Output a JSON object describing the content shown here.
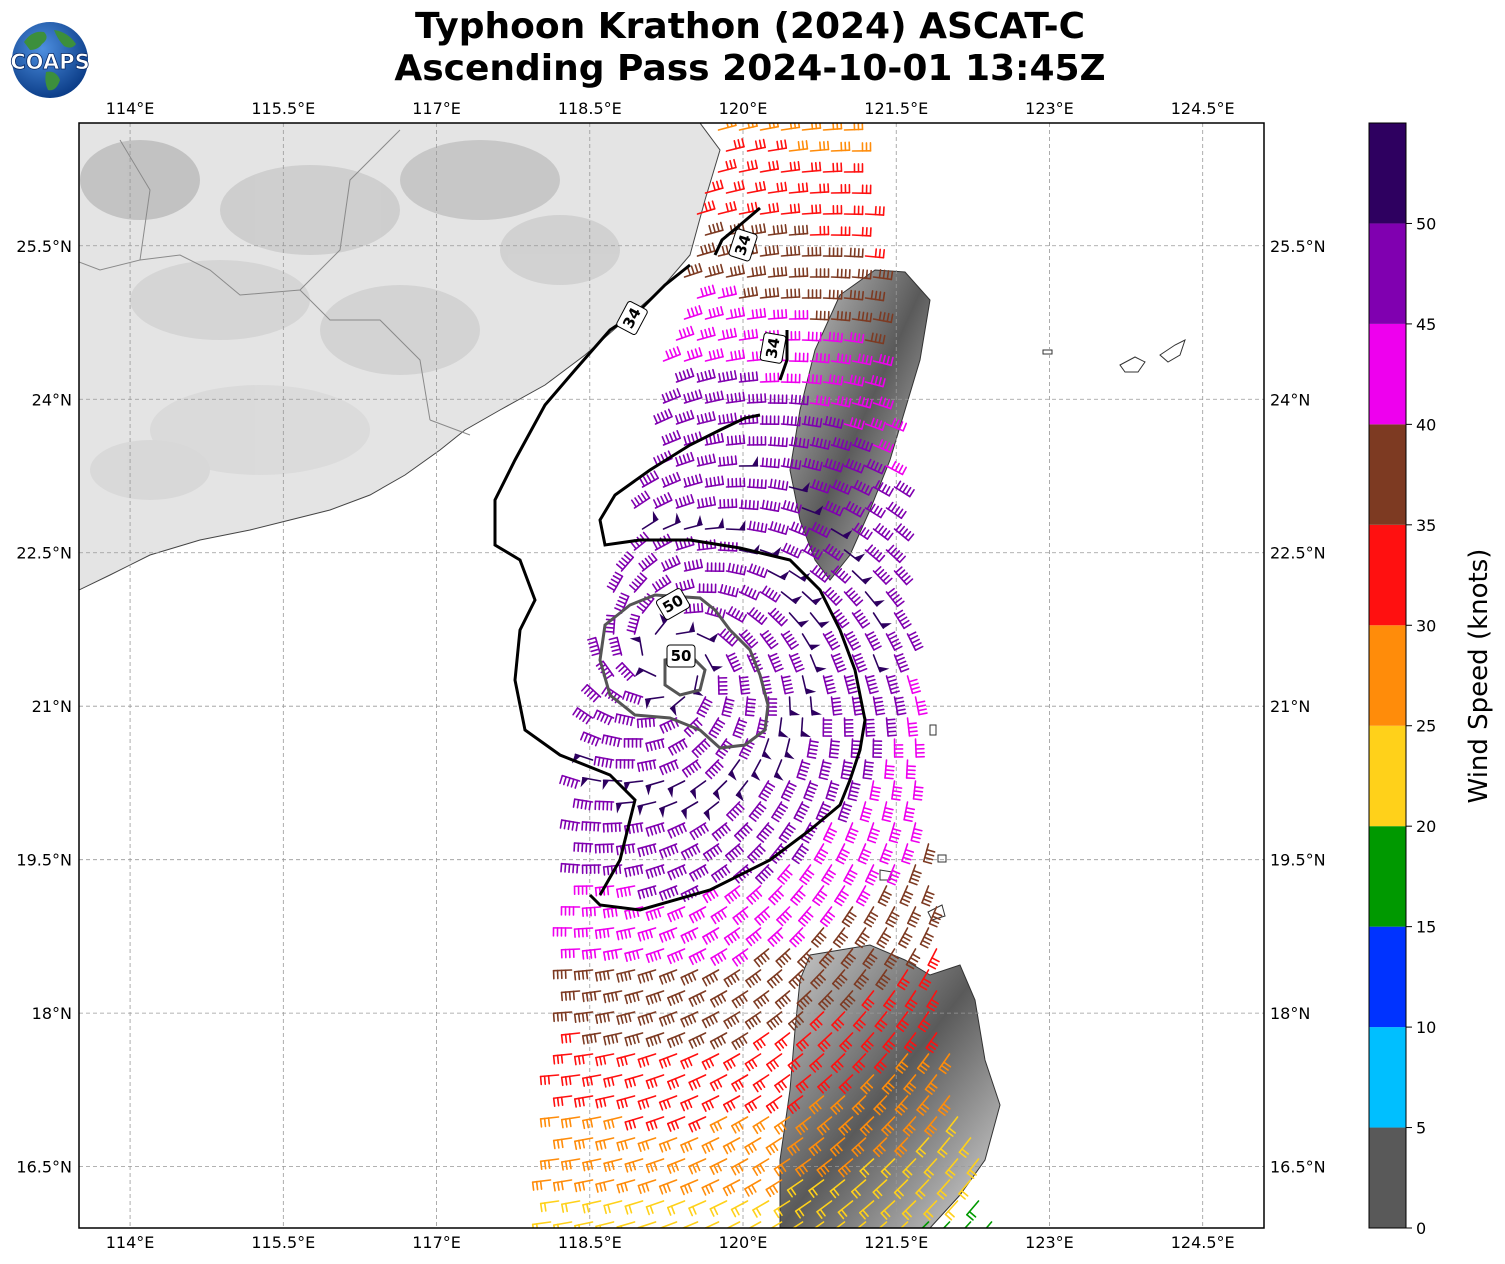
{
  "title": {
    "line1": "Typhoon Krathon (2024) ASCAT-C",
    "line2": "Ascending Pass 2024-10-01 13:45Z"
  },
  "logo": {
    "text": "COAPS",
    "icon": "globe-icon",
    "ocean_color": "#1a5fb0",
    "land_color": "#3c8f3c"
  },
  "map": {
    "lon_labels": [
      "114°E",
      "115.5°E",
      "117°E",
      "118.5°E",
      "120°E",
      "121.5°E",
      "123°E",
      "124.5°E"
    ],
    "lat_labels": [
      "25.5°N",
      "24°N",
      "22.5°N",
      "21°N",
      "19.5°N",
      "18°N",
      "16.5°N"
    ],
    "lon_values": [
      114,
      115.5,
      117,
      118.5,
      120,
      121.5,
      123,
      124.5
    ],
    "lat_values": [
      25.5,
      24,
      22.5,
      21,
      19.5,
      18,
      16.5
    ],
    "lon_range": [
      113.5,
      125.1
    ],
    "lat_range": [
      15.9,
      26.7
    ],
    "storm_center": {
      "lon": 119.3,
      "lat": 21.45
    },
    "contours": [
      {
        "label": "34",
        "color": "#000000"
      },
      {
        "label": "34",
        "color": "#000000"
      },
      {
        "label": "34",
        "color": "#000000"
      },
      {
        "label": "50",
        "color": "#555555"
      },
      {
        "label": "50",
        "color": "#555555"
      }
    ]
  },
  "colorbar": {
    "label": "Wind Speed (knots)",
    "tick_labels": [
      "0",
      "5",
      "10",
      "15",
      "20",
      "25",
      "30",
      "35",
      "40",
      "45",
      "50"
    ],
    "bins": [
      {
        "min": 0,
        "max": 5,
        "color": "#595959"
      },
      {
        "min": 5,
        "max": 10,
        "color": "#00bfff"
      },
      {
        "min": 10,
        "max": 15,
        "color": "#0033ff"
      },
      {
        "min": 15,
        "max": 20,
        "color": "#009900"
      },
      {
        "min": 20,
        "max": 25,
        "color": "#ffd11a"
      },
      {
        "min": 25,
        "max": 30,
        "color": "#ff8c0a"
      },
      {
        "min": 30,
        "max": 35,
        "color": "#ff1010"
      },
      {
        "min": 35,
        "max": 40,
        "color": "#7d3a22"
      },
      {
        "min": 40,
        "max": 45,
        "color": "#ee00ee"
      },
      {
        "min": 45,
        "max": 50,
        "color": "#8000b0"
      },
      {
        "min": 50,
        "max": 55,
        "color": "#2e0060"
      }
    ]
  }
}
